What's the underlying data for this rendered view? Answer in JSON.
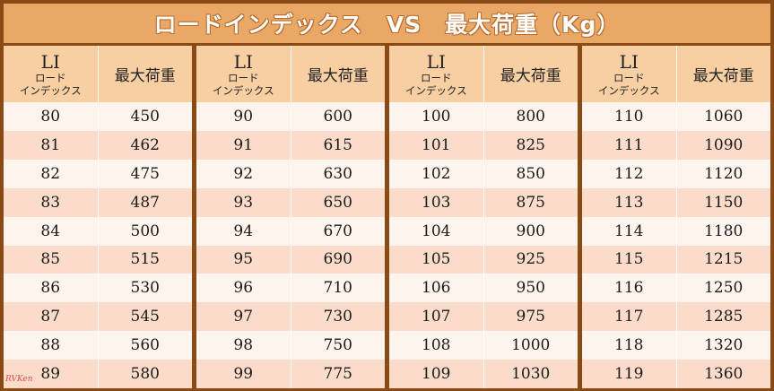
{
  "title": "ロードインデックス　VS　最大荷重（Kg）",
  "header": {
    "li": "LI",
    "li_sub1": "ロード",
    "li_sub2": "インデックス",
    "load": "最大荷重"
  },
  "groups": [
    {
      "rows": [
        [
          "80",
          "450"
        ],
        [
          "81",
          "462"
        ],
        [
          "82",
          "475"
        ],
        [
          "83",
          "487"
        ],
        [
          "84",
          "500"
        ],
        [
          "85",
          "515"
        ],
        [
          "86",
          "530"
        ],
        [
          "87",
          "545"
        ],
        [
          "88",
          "560"
        ],
        [
          "89",
          "580"
        ]
      ]
    },
    {
      "rows": [
        [
          "90",
          "600"
        ],
        [
          "91",
          "615"
        ],
        [
          "92",
          "630"
        ],
        [
          "93",
          "650"
        ],
        [
          "94",
          "670"
        ],
        [
          "95",
          "690"
        ],
        [
          "96",
          "710"
        ],
        [
          "97",
          "730"
        ],
        [
          "98",
          "750"
        ],
        [
          "99",
          "775"
        ]
      ]
    },
    {
      "rows": [
        [
          "100",
          "800"
        ],
        [
          "101",
          "825"
        ],
        [
          "102",
          "850"
        ],
        [
          "103",
          "875"
        ],
        [
          "104",
          "900"
        ],
        [
          "105",
          "925"
        ],
        [
          "106",
          "950"
        ],
        [
          "107",
          "975"
        ],
        [
          "108",
          "1000"
        ],
        [
          "109",
          "1030"
        ]
      ]
    },
    {
      "rows": [
        [
          "110",
          "1060"
        ],
        [
          "111",
          "1090"
        ],
        [
          "112",
          "1120"
        ],
        [
          "113",
          "1150"
        ],
        [
          "114",
          "1180"
        ],
        [
          "115",
          "1215"
        ],
        [
          "116",
          "1250"
        ],
        [
          "117",
          "1285"
        ],
        [
          "118",
          "1320"
        ],
        [
          "119",
          "1360"
        ]
      ]
    }
  ],
  "watermark": "RVKen"
}
